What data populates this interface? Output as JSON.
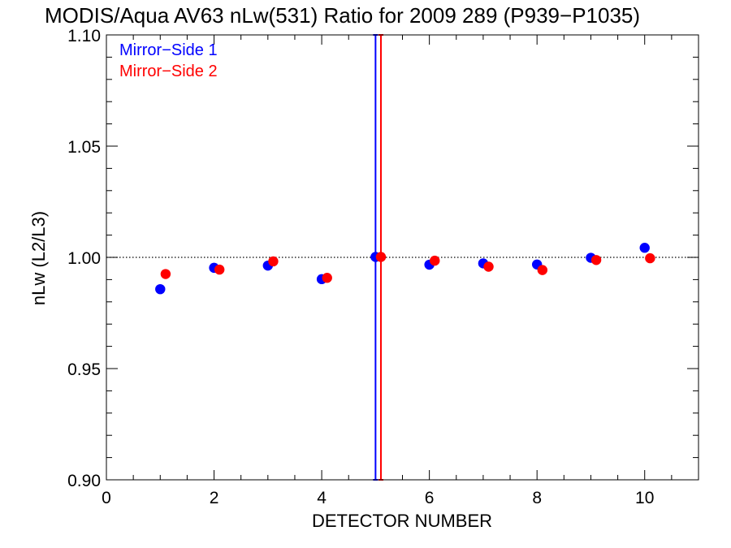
{
  "chart_data": {
    "type": "scatter",
    "title": "MODIS/Aqua AV63 nLw(531) Ratio for 2009 289 (P939−P1035)",
    "xlabel": "DETECTOR NUMBER",
    "ylabel": "nLw (L2/L3)",
    "xlim": [
      0,
      11
    ],
    "ylim": [
      0.9,
      1.1
    ],
    "xticks": [
      0,
      2,
      4,
      6,
      8,
      10
    ],
    "yticks": [
      0.9,
      0.95,
      1.0,
      1.05,
      1.1
    ],
    "xtick_labels": [
      "0",
      "2",
      "4",
      "6",
      "8",
      "10"
    ],
    "ytick_labels": [
      "0.90",
      "0.95",
      "1.00",
      "1.05",
      "1.10"
    ],
    "reference_line": {
      "y": 1.0,
      "style": "dotted"
    },
    "grid": false,
    "legend_position": "top-left",
    "series": [
      {
        "name": "Mirror−Side 1",
        "color": "#0000ff",
        "x": [
          1,
          2,
          3,
          4,
          5,
          6,
          7,
          8,
          9,
          10
        ],
        "y": [
          0.9857,
          0.9953,
          0.9963,
          0.9902,
          1.0002,
          0.9967,
          0.9973,
          0.9968,
          0.9998,
          1.0043
        ],
        "error_bar": {
          "x": 5,
          "low": 0.9,
          "high": 1.1
        }
      },
      {
        "name": "Mirror−Side 2",
        "color": "#ff0000",
        "x": [
          1.1,
          2.1,
          3.1,
          4.1,
          5.1,
          6.1,
          7.1,
          8.1,
          9.1,
          10.1
        ],
        "y": [
          0.9925,
          0.9945,
          0.9982,
          0.9908,
          1.0002,
          0.9985,
          0.9958,
          0.9943,
          0.9988,
          0.9996
        ],
        "error_bar": {
          "x": 5.1,
          "low": 0.9,
          "high": 1.1
        }
      }
    ]
  }
}
